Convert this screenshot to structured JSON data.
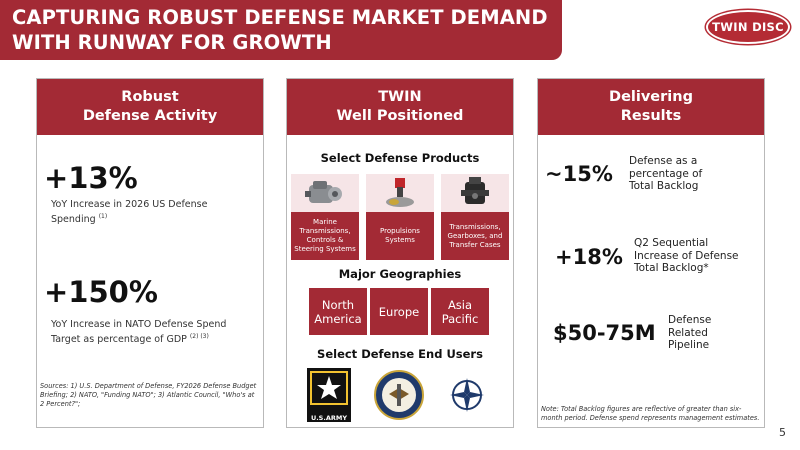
{
  "header": {
    "title": "CAPTURING ROBUST DEFENSE MARKET DEMAND WITH RUNWAY FOR GROWTH",
    "logo_text": "TWIN DISC"
  },
  "panel1": {
    "title": "Robust\nDefense Activity",
    "stat1": {
      "value": "+13%",
      "desc": "YoY Increase in 2026 US  Defense Spending",
      "ref": "(1)"
    },
    "stat2": {
      "value": "+150%",
      "desc": "YoY Increase in NATO Defense Spend Target as percentage of GDP",
      "ref": "(2) (3)"
    },
    "sources": "Sources: 1) U.S. Department of Defense, FY2026 Defense Budget Briefing; 2) NATO, \"Funding NATO\"; 3) Atlantic Council, \"Who's at 2 Percent?\";"
  },
  "panel2": {
    "title": "TWIN\nWell Positioned",
    "products_title": "Select Defense Products",
    "products": [
      {
        "label": "Marine Transmissions, Controls & Steering Systems",
        "icon": "transmission-icon"
      },
      {
        "label": "Propulsions Systems",
        "icon": "propulsion-icon"
      },
      {
        "label": "Transmissions, Gearboxes, and Transfer Cases",
        "icon": "gearbox-icon"
      }
    ],
    "geo_title": "Major Geographies",
    "geographies": [
      "North America",
      "Europe",
      "Asia Pacific"
    ],
    "users_title": "Select Defense End Users",
    "users": [
      {
        "label": "U.S.ARMY",
        "icon": "us-army-icon"
      },
      {
        "label": "",
        "icon": "us-navy-icon"
      },
      {
        "label": "",
        "icon": "nato-icon"
      }
    ]
  },
  "panel3": {
    "title": "Delivering\nResults",
    "items": [
      {
        "value": "~15%",
        "desc": "Defense as a percentage of Total Backlog"
      },
      {
        "value": "+18%",
        "desc": "Q2 Sequential Increase of Defense Total Backlog*"
      },
      {
        "value": "$50-75M",
        "desc": "Defense Related Pipeline"
      }
    ],
    "note": "Note: Total Backlog figures are reflective of greater than six-month period. Defense spend represents management estimates."
  },
  "page_number": "5",
  "colors": {
    "brand": "#a32a35",
    "light": "#f6e5e7"
  }
}
